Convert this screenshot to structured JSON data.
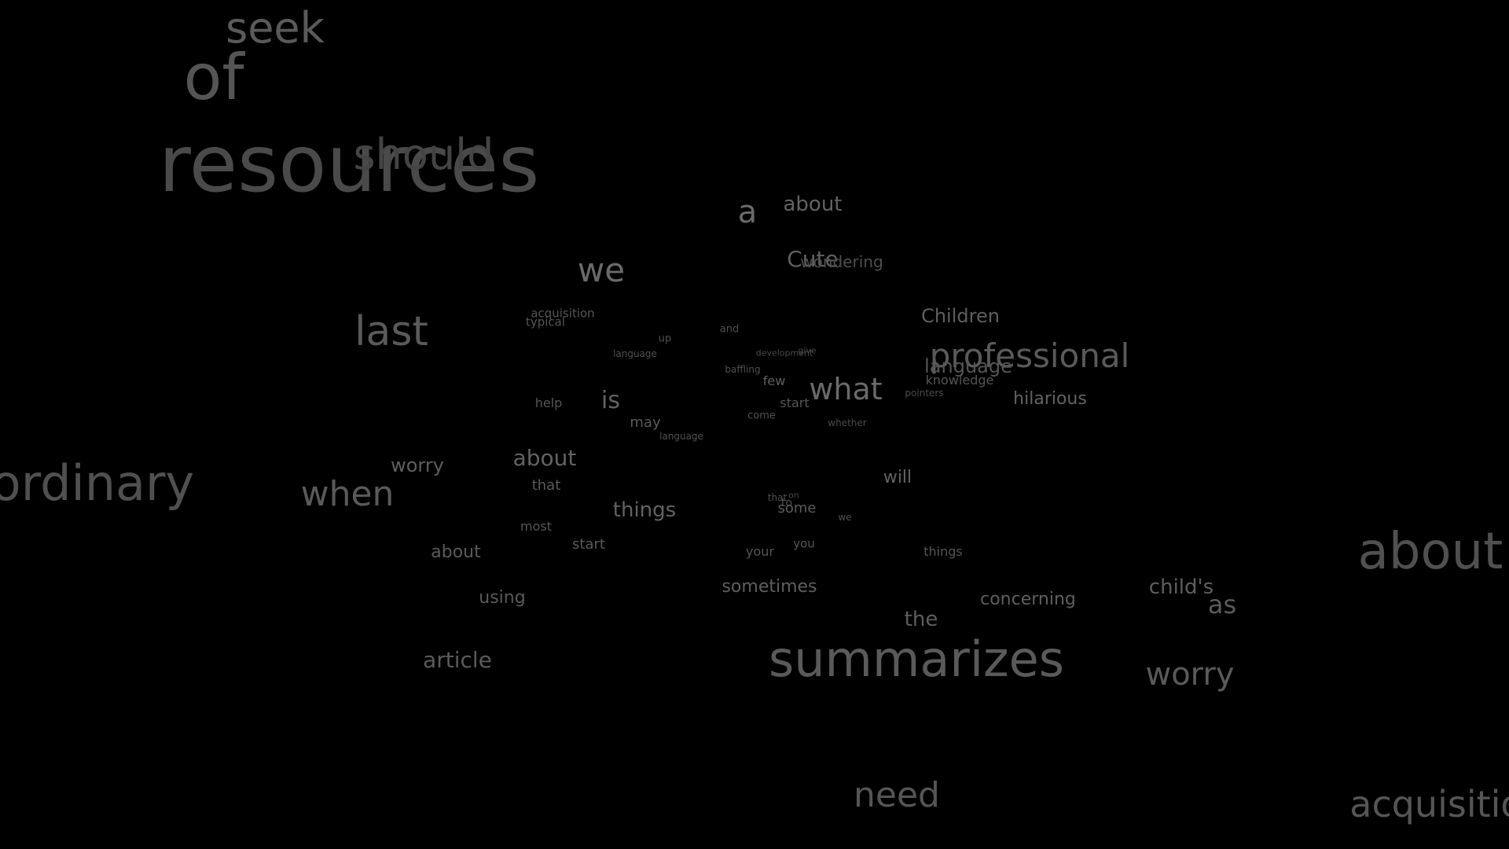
{
  "background_color": "#000000",
  "word_cloud": {
    "words": [
      {
        "id": "seek",
        "text": "seek",
        "color": "#5a5a5a"
      },
      {
        "id": "of",
        "text": "of",
        "color": "#555555"
      },
      {
        "id": "resources",
        "text": "resources",
        "color": "#4a4a4a"
      },
      {
        "id": "should",
        "text": "should",
        "color": "#444444"
      },
      {
        "id": "a",
        "text": "a",
        "color": "#6a6a6a"
      },
      {
        "id": "about-1",
        "text": "about",
        "color": "#626262"
      },
      {
        "id": "we-1",
        "text": "we",
        "color": "#6a6a6a"
      },
      {
        "id": "cute",
        "text": "Cute",
        "color": "#5e5e5e"
      },
      {
        "id": "wondering",
        "text": "wondering",
        "color": "#4e4e4e"
      },
      {
        "id": "last",
        "text": "last",
        "color": "#5a5a5a"
      },
      {
        "id": "acquisition-1",
        "text": "acquisition",
        "color": "#555555"
      },
      {
        "id": "typical",
        "text": "typical",
        "color": "#555555"
      },
      {
        "id": "up",
        "text": "up",
        "color": "#505050"
      },
      {
        "id": "and",
        "text": "and",
        "color": "#505050"
      },
      {
        "id": "language-1",
        "text": "language",
        "color": "#505050"
      },
      {
        "id": "development",
        "text": "development",
        "color": "#4a4a4a"
      },
      {
        "id": "give",
        "text": "give",
        "color": "#4a4a4a"
      },
      {
        "id": "children",
        "text": "Children",
        "color": "#5e5e5e"
      },
      {
        "id": "professional",
        "text": "professional",
        "color": "#5a5a5a"
      },
      {
        "id": "language-2",
        "text": "language",
        "color": "#555555"
      },
      {
        "id": "knowledge",
        "text": "knowledge",
        "color": "#555555"
      },
      {
        "id": "baffling",
        "text": "baffling",
        "color": "#505050"
      },
      {
        "id": "few",
        "text": "few",
        "color": "#5e5e5e"
      },
      {
        "id": "what",
        "text": "what",
        "color": "#6a6a6a"
      },
      {
        "id": "pointers",
        "text": "pointers",
        "color": "#4a4a4a"
      },
      {
        "id": "hilarious",
        "text": "hilarious",
        "color": "#626262"
      },
      {
        "id": "help",
        "text": "help",
        "color": "#555555"
      },
      {
        "id": "is",
        "text": "is",
        "color": "#626262"
      },
      {
        "id": "start-1",
        "text": "start",
        "color": "#555555"
      },
      {
        "id": "come",
        "text": "come",
        "color": "#505050"
      },
      {
        "id": "whether",
        "text": "whether",
        "color": "#4a4a4a"
      },
      {
        "id": "may",
        "text": "may",
        "color": "#5a5a5a"
      },
      {
        "id": "language-3",
        "text": "language",
        "color": "#505050"
      },
      {
        "id": "ordinary",
        "text": "ordinary",
        "color": "#505050"
      },
      {
        "id": "worry-1",
        "text": "worry",
        "color": "#5e5e5e"
      },
      {
        "id": "about-2",
        "text": "about",
        "color": "#626262"
      },
      {
        "id": "when",
        "text": "when",
        "color": "#5a5a5a"
      },
      {
        "id": "that-1",
        "text": "that",
        "color": "#5a5a5a"
      },
      {
        "id": "will",
        "text": "will",
        "color": "#626262"
      },
      {
        "id": "that-2",
        "text": "that",
        "color": "#505050"
      },
      {
        "id": "on",
        "text": "on",
        "color": "#4a4a4a"
      },
      {
        "id": "to",
        "text": "to",
        "color": "#505050"
      },
      {
        "id": "some",
        "text": "some",
        "color": "#5a5a5a"
      },
      {
        "id": "things-1",
        "text": "things",
        "color": "#626262"
      },
      {
        "id": "we-2",
        "text": "we",
        "color": "#505050"
      },
      {
        "id": "most",
        "text": "most",
        "color": "#555555"
      },
      {
        "id": "start-2",
        "text": "start",
        "color": "#5a5a5a"
      },
      {
        "id": "you",
        "text": "you",
        "color": "#555555"
      },
      {
        "id": "about-3",
        "text": "about",
        "color": "#5a5a5a"
      },
      {
        "id": "your",
        "text": "your",
        "color": "#555555"
      },
      {
        "id": "things-2",
        "text": "things",
        "color": "#555555"
      },
      {
        "id": "sometimes",
        "text": "sometimes",
        "color": "#5e5e5e"
      },
      {
        "id": "using",
        "text": "using",
        "color": "#5a5a5a"
      },
      {
        "id": "childs",
        "text": "child's",
        "color": "#5e5e5e"
      },
      {
        "id": "concerning",
        "text": "concerning",
        "color": "#5e5e5e"
      },
      {
        "id": "about-4",
        "text": "about",
        "color": "#505050"
      },
      {
        "id": "as",
        "text": "as",
        "color": "#5a5a5a"
      },
      {
        "id": "the",
        "text": "the",
        "color": "#5e5e5e"
      },
      {
        "id": "article",
        "text": "article",
        "color": "#5a5a5a"
      },
      {
        "id": "summarizes",
        "text": "summarizes",
        "color": "#5a5a5a"
      },
      {
        "id": "worry-2",
        "text": "worry",
        "color": "#5a5a5a"
      },
      {
        "id": "need",
        "text": "need",
        "color": "#555555"
      },
      {
        "id": "acquisition-2",
        "text": "acquisition",
        "color": "#555555"
      }
    ]
  }
}
